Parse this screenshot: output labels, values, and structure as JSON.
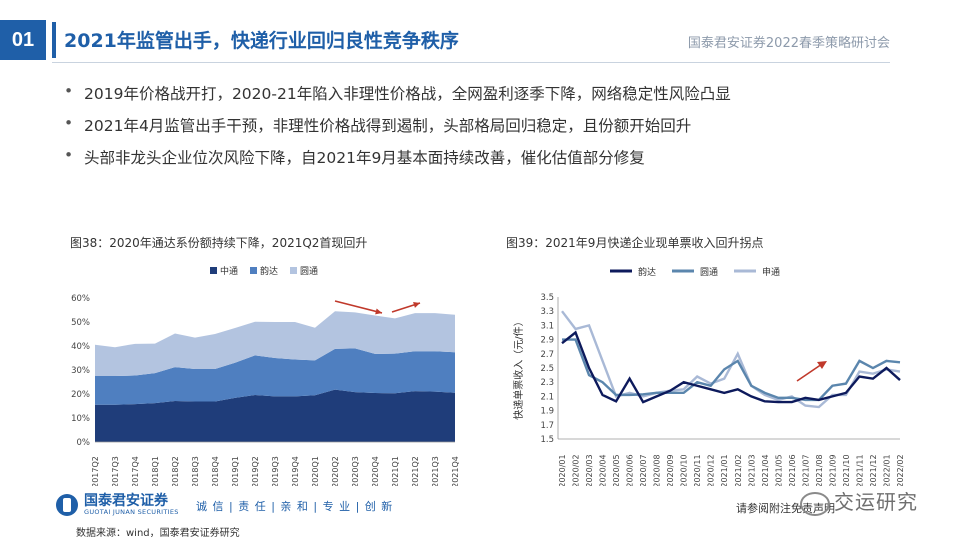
{
  "header": {
    "slide_number": "01",
    "title": "2021年监管出手，快递行业回归良性竞争秩序",
    "conference": "国泰君安证券2022春季策略研讨会"
  },
  "bullets": [
    "2019年价格战开打，2020-21年陷入非理性价格战，全网盈利逐季下降，网络稳定性风险凸显",
    "2021年4月监管出手干预，非理性价格战得到遏制，头部格局回归稳定，且份额开始回升",
    "头部非龙头企业位次风险下降，自2021年9月基本面持续改善，催化估值部分修复"
  ],
  "figures": {
    "fig38_title": "图38：2020年通达系份额持续下降，2021Q2首现回升",
    "fig39_title": "图39：2021年9月快递企业现单票收入回升拐点"
  },
  "footer": {
    "logo_cn": "国泰君安证券",
    "logo_en": "GUOTAI JUNAN SECURITIES",
    "slogan": "诚 信 | 责 任 | 亲 和 | 专 业 | 创 新",
    "source": "数据来源：wind，国泰君安证券研究",
    "disclaimer": "请参阅附注免责声明",
    "watermark": "交运研究"
  },
  "chart_data": [
    {
      "type": "area",
      "stacked": true,
      "categories": [
        "2017Q2",
        "2017Q3",
        "2017Q4",
        "2018Q1",
        "2018Q2",
        "2018Q3",
        "2018Q4",
        "2019Q1",
        "2019Q2",
        "2019Q3",
        "2019Q4",
        "2020Q1",
        "2020Q2",
        "2020Q3",
        "2020Q4",
        "2021Q1",
        "2021Q2",
        "2021Q3",
        "2021Q4"
      ],
      "series": [
        {
          "name": "中通",
          "color": "#1f3d7a",
          "values": [
            15.5,
            15.5,
            15.8,
            16.2,
            17.1,
            16.9,
            16.9,
            18.4,
            19.6,
            19.0,
            19.0,
            19.5,
            21.8,
            20.8,
            20.4,
            20.3,
            21.2,
            21.0,
            20.5
          ]
        },
        {
          "name": "韵达",
          "color": "#4f7fc0",
          "values": [
            12.0,
            12.0,
            11.9,
            12.5,
            14.1,
            13.5,
            13.5,
            14.6,
            16.5,
            16.0,
            15.4,
            14.5,
            17.0,
            18.2,
            16.3,
            16.5,
            16.6,
            16.8,
            16.9
          ]
        },
        {
          "name": "圆通",
          "color": "#b3c4e0",
          "values": [
            13.0,
            12.0,
            13.2,
            12.3,
            14.0,
            13.1,
            14.6,
            14.5,
            14.0,
            15.0,
            15.6,
            13.6,
            15.7,
            15.0,
            16.0,
            14.7,
            15.9,
            15.9,
            15.6
          ]
        }
      ],
      "ylim": [
        0,
        60
      ],
      "yticks": [
        "0%",
        "10%",
        "20%",
        "30%",
        "40%",
        "50%",
        "60%"
      ],
      "legend": "top"
    },
    {
      "type": "line",
      "categories": [
        "2020/01",
        "2020/02",
        "2020/03",
        "2020/04",
        "2020/05",
        "2020/06",
        "2020/07",
        "2020/08",
        "2020/09",
        "2020/10",
        "2020/11",
        "2020/12",
        "2021/01",
        "2021/02",
        "2021/03",
        "2021/04",
        "2021/05",
        "2021/06",
        "2021/07",
        "2021/08",
        "2021/09",
        "2021/10",
        "2021/11",
        "2021/12",
        "2022/01",
        "2022/02"
      ],
      "series": [
        {
          "name": "韵达",
          "color": "#0d1a5c",
          "values": [
            2.85,
            3.0,
            2.5,
            2.12,
            2.03,
            2.35,
            2.02,
            2.1,
            2.18,
            2.3,
            2.25,
            2.2,
            2.15,
            2.2,
            2.1,
            2.03,
            2.02,
            2.02,
            2.08,
            2.05,
            2.1,
            2.15,
            2.38,
            2.35,
            2.5,
            2.33
          ]
        },
        {
          "name": "圆通",
          "color": "#5b86ad",
          "values": [
            2.9,
            2.9,
            2.4,
            2.3,
            2.12,
            2.12,
            2.13,
            2.15,
            2.15,
            2.15,
            2.3,
            2.25,
            2.48,
            2.6,
            2.25,
            2.15,
            2.08,
            2.08,
            2.05,
            2.05,
            2.25,
            2.28,
            2.6,
            2.5,
            2.6,
            2.58
          ]
        },
        {
          "name": "申通",
          "color": "#a9b9d6",
          "values": [
            3.3,
            3.05,
            3.1,
            2.6,
            2.1,
            2.15,
            2.1,
            2.15,
            2.18,
            2.2,
            2.38,
            2.28,
            2.35,
            2.7,
            2.25,
            2.12,
            2.05,
            2.1,
            1.97,
            1.95,
            2.12,
            2.12,
            2.45,
            2.42,
            2.48,
            2.45
          ]
        }
      ],
      "ylabel": "快递单票收入（元/件）",
      "ylim": [
        1.5,
        3.5
      ],
      "yticks": [
        "1.5",
        "1.7",
        "1.9",
        "2.1",
        "2.3",
        "2.5",
        "2.7",
        "2.9",
        "3.1",
        "3.3",
        "3.5"
      ],
      "legend": "top"
    }
  ]
}
